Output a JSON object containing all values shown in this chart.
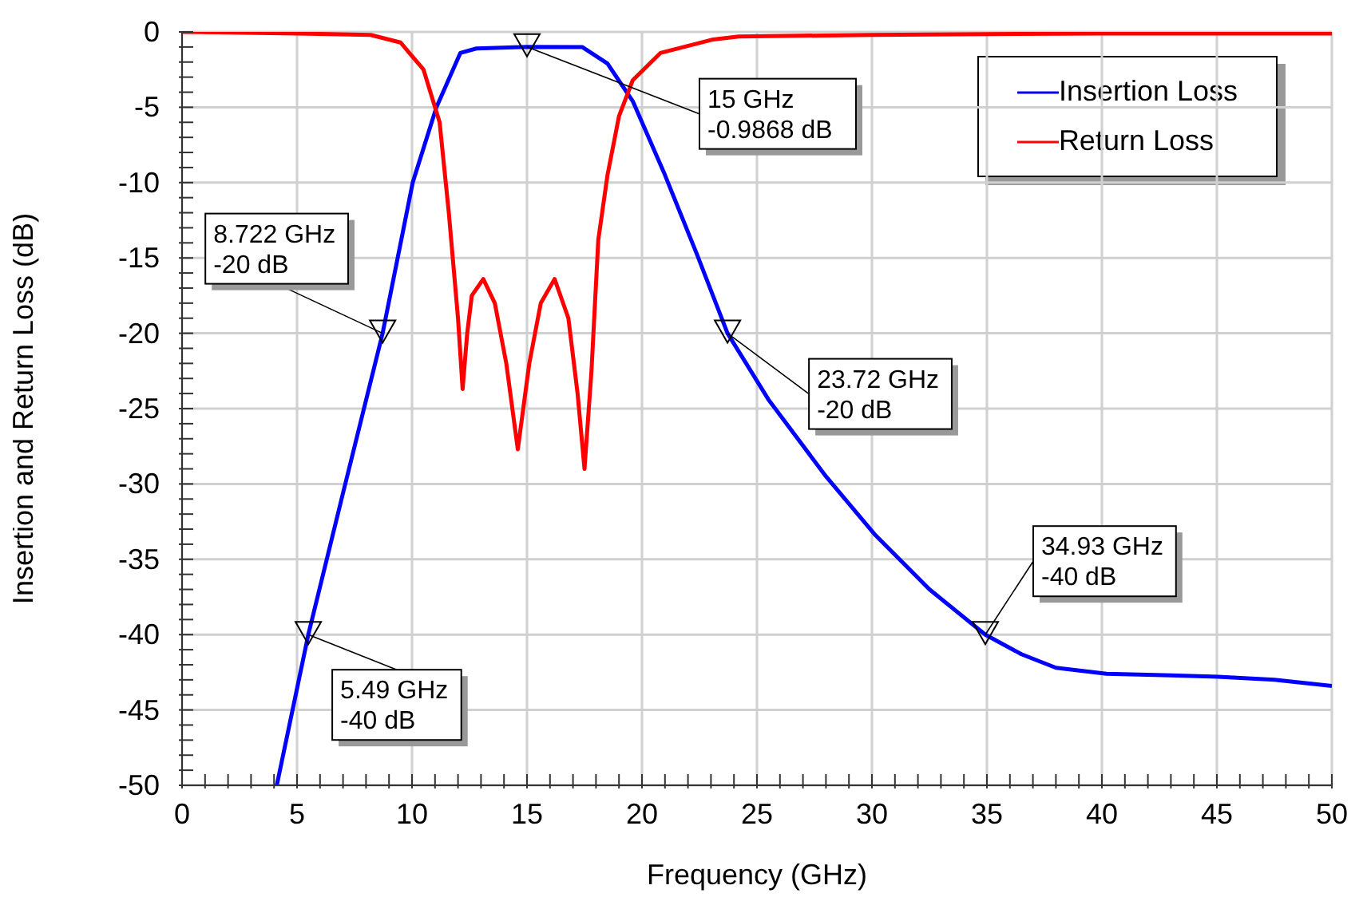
{
  "chart_data": {
    "type": "line",
    "xlabel": "Frequency (GHz)",
    "ylabel": "Insertion and Return Loss (dB)",
    "xlim": [
      0,
      50
    ],
    "ylim": [
      -50,
      0
    ],
    "xticks": [
      0,
      {
        "value": 1,
        "label": null
      },
      {
        "value": 2,
        "label": null
      },
      {
        "value": 3,
        "label": null
      },
      {
        "value": 4,
        "label": null
      },
      5,
      {
        "value": 6,
        "label": null
      },
      {
        "value": 7,
        "label": null
      },
      {
        "value": 8,
        "label": null
      },
      {
        "value": 9,
        "label": null
      },
      10,
      {
        "value": 11,
        "label": null
      },
      {
        "value": 12,
        "label": null
      },
      {
        "value": 13,
        "label": null
      },
      {
        "value": 14,
        "label": null
      },
      15,
      {
        "value": 16,
        "label": null
      },
      {
        "value": 17,
        "label": null
      },
      {
        "value": 18,
        "label": null
      },
      {
        "value": 19,
        "label": null
      },
      20,
      {
        "value": 21,
        "label": null
      },
      {
        "value": 22,
        "label": null
      },
      {
        "value": 23,
        "label": null
      },
      {
        "value": 24,
        "label": null
      },
      25,
      {
        "value": 26,
        "label": null
      },
      {
        "value": 27,
        "label": null
      },
      {
        "value": 28,
        "label": null
      },
      {
        "value": 29,
        "label": null
      },
      30,
      {
        "value": 31,
        "label": null
      },
      {
        "value": 32,
        "label": null
      },
      {
        "value": 33,
        "label": null
      },
      {
        "value": 34,
        "label": null
      },
      35,
      {
        "value": 36,
        "label": null
      },
      {
        "value": 37,
        "label": null
      },
      {
        "value": 38,
        "label": null
      },
      {
        "value": 39,
        "label": null
      },
      40,
      {
        "value": 41,
        "label": null
      },
      {
        "value": 42,
        "label": null
      },
      {
        "value": 43,
        "label": null
      },
      {
        "value": 44,
        "label": null
      },
      45,
      {
        "value": 46,
        "label": null
      },
      {
        "value": 47,
        "label": null
      },
      {
        "value": 48,
        "label": null
      },
      {
        "value": 49,
        "label": null
      },
      50
    ],
    "yticks": [
      -50,
      {
        "value": -49,
        "label": null
      },
      {
        "value": -48,
        "label": null
      },
      {
        "value": -47,
        "label": null
      },
      {
        "value": -46,
        "label": null
      },
      -45,
      {
        "value": -44,
        "label": null
      },
      {
        "value": -43,
        "label": null
      },
      {
        "value": -42,
        "label": null
      },
      {
        "value": -41,
        "label": null
      },
      -40,
      {
        "value": -39,
        "label": null
      },
      {
        "value": -38,
        "label": null
      },
      {
        "value": -37,
        "label": null
      },
      {
        "value": -36,
        "label": null
      },
      -35,
      {
        "value": -34,
        "label": null
      },
      {
        "value": -33,
        "label": null
      },
      {
        "value": -32,
        "label": null
      },
      {
        "value": -31,
        "label": null
      },
      -30,
      {
        "value": -29,
        "label": null
      },
      {
        "value": -28,
        "label": null
      },
      {
        "value": -27,
        "label": null
      },
      {
        "value": -26,
        "label": null
      },
      -25,
      {
        "value": -24,
        "label": null
      },
      {
        "value": -23,
        "label": null
      },
      {
        "value": -22,
        "label": null
      },
      {
        "value": -21,
        "label": null
      },
      -20,
      {
        "value": -19,
        "label": null
      },
      {
        "value": -18,
        "label": null
      },
      {
        "value": -17,
        "label": null
      },
      {
        "value": -16,
        "label": null
      },
      -15,
      {
        "value": -14,
        "label": null
      },
      {
        "value": -13,
        "label": null
      },
      {
        "value": -12,
        "label": null
      },
      {
        "value": -11,
        "label": null
      },
      -10,
      {
        "value": -9,
        "label": null
      },
      {
        "value": -8,
        "label": null
      },
      {
        "value": -7,
        "label": null
      },
      {
        "value": -6,
        "label": null
      },
      -5,
      {
        "value": -4,
        "label": null
      },
      {
        "value": -3,
        "label": null
      },
      {
        "value": -2,
        "label": null
      },
      {
        "value": -1,
        "label": null
      },
      0
    ],
    "grid": true,
    "legend": "top right",
    "marker": "none",
    "line_style": "solid",
    "series": [
      {
        "name": "Insertion Loss",
        "color": "#0000ff",
        "x": [
          4.12,
          5.49,
          7,
          8.722,
          10.03,
          11.06,
          12.1,
          12.8,
          15,
          17.4,
          18.5,
          19.6,
          21,
          22.4,
          23.72,
          25.5,
          28,
          30.15,
          32.5,
          34.93,
          36.5,
          38,
          40.2,
          43,
          45.05,
          47.5,
          50
        ],
        "values": [
          -50,
          -40,
          -30.6,
          -20,
          -10,
          -5,
          -1.4,
          -1.1,
          -0.9868,
          -1,
          -2.1,
          -4.6,
          -9.5,
          -14.8,
          -20,
          -24.4,
          -29.5,
          -33.4,
          -37,
          -40,
          -41.3,
          -42.2,
          -42.6,
          -42.7,
          -42.8,
          -43,
          -43.4
        ]
      },
      {
        "name": "Return Loss",
        "color": "#ff0000",
        "x": [
          0,
          5,
          8.2,
          9.5,
          10.5,
          11.2,
          11.6,
          12,
          12.2,
          12.4,
          12.6,
          13.1,
          13.6,
          14.1,
          14.6,
          15.1,
          15.6,
          16.2,
          16.8,
          17.2,
          17.5,
          17.8,
          18.1,
          18.5,
          19,
          19.6,
          20.8,
          23.1,
          24.2,
          30,
          40,
          50
        ],
        "values": [
          0,
          -0.1,
          -0.2,
          -0.7,
          -2.5,
          -6,
          -12,
          -19,
          -23.7,
          -20,
          -17.5,
          -16.4,
          -18,
          -22,
          -27.7,
          -22,
          -18,
          -16.4,
          -19,
          -24,
          -29,
          -22.6,
          -13.8,
          -9.5,
          -5.6,
          -3.2,
          -1.4,
          -0.5,
          -0.3,
          -0.2,
          -0.1,
          -0.1
        ]
      }
    ],
    "annotations": [
      {
        "text": "15 GHz\n-0.9868 dB",
        "x": 15,
        "y": -0.9868
      },
      {
        "text": "8.722 GHz\n-20 dB",
        "x": 8.722,
        "y": -20
      },
      {
        "text": "23.72 GHz\n-20 dB",
        "x": 23.72,
        "y": -20
      },
      {
        "text": "34.93 GHz\n-40 dB",
        "x": 34.93,
        "y": -40
      },
      {
        "text": "5.49 GHz\n-40 dB",
        "x": 5.49,
        "y": -40
      }
    ]
  }
}
